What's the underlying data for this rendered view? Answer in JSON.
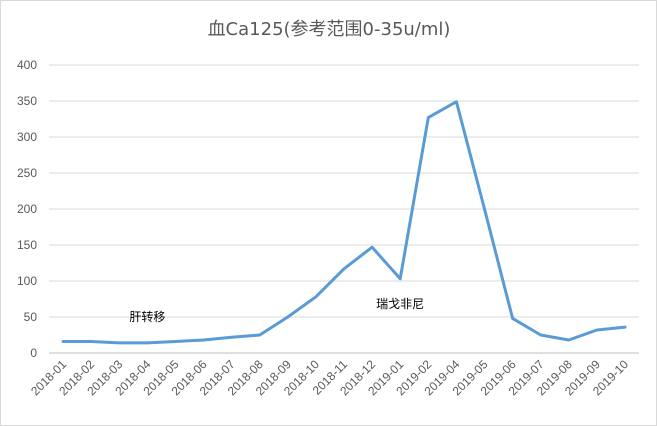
{
  "chart_data": {
    "type": "line",
    "title": "血Ca125(参考范围0-35u/ml)",
    "categories": [
      "2018-01",
      "2018-02",
      "2018-03",
      "2018-04",
      "2018-05",
      "2018-06",
      "2018-07",
      "2018-08",
      "2018-09",
      "2018-10",
      "2018-11",
      "2018-12",
      "2019-01",
      "2019-02",
      "2019-04",
      "2019-05",
      "2019-06",
      "2019-07",
      "2019-08",
      "2019-09",
      "2019-10"
    ],
    "series": [
      {
        "values": [
          16,
          16,
          14,
          14,
          16,
          18,
          22,
          25,
          50,
          78,
          117,
          147,
          103,
          327,
          349,
          200,
          48,
          25,
          18,
          32,
          36
        ],
        "color": "#5b9bd5"
      }
    ],
    "ylim": [
      0,
      400
    ],
    "yticks": [
      0,
      50,
      100,
      150,
      200,
      250,
      300,
      350,
      400
    ],
    "grid": true,
    "legend": "none",
    "annotations": [
      {
        "text": "肝转移",
        "category": "2018-04",
        "y": 50
      },
      {
        "text": "瑞戈非尼",
        "category": "2019-01",
        "y": 68
      }
    ]
  }
}
